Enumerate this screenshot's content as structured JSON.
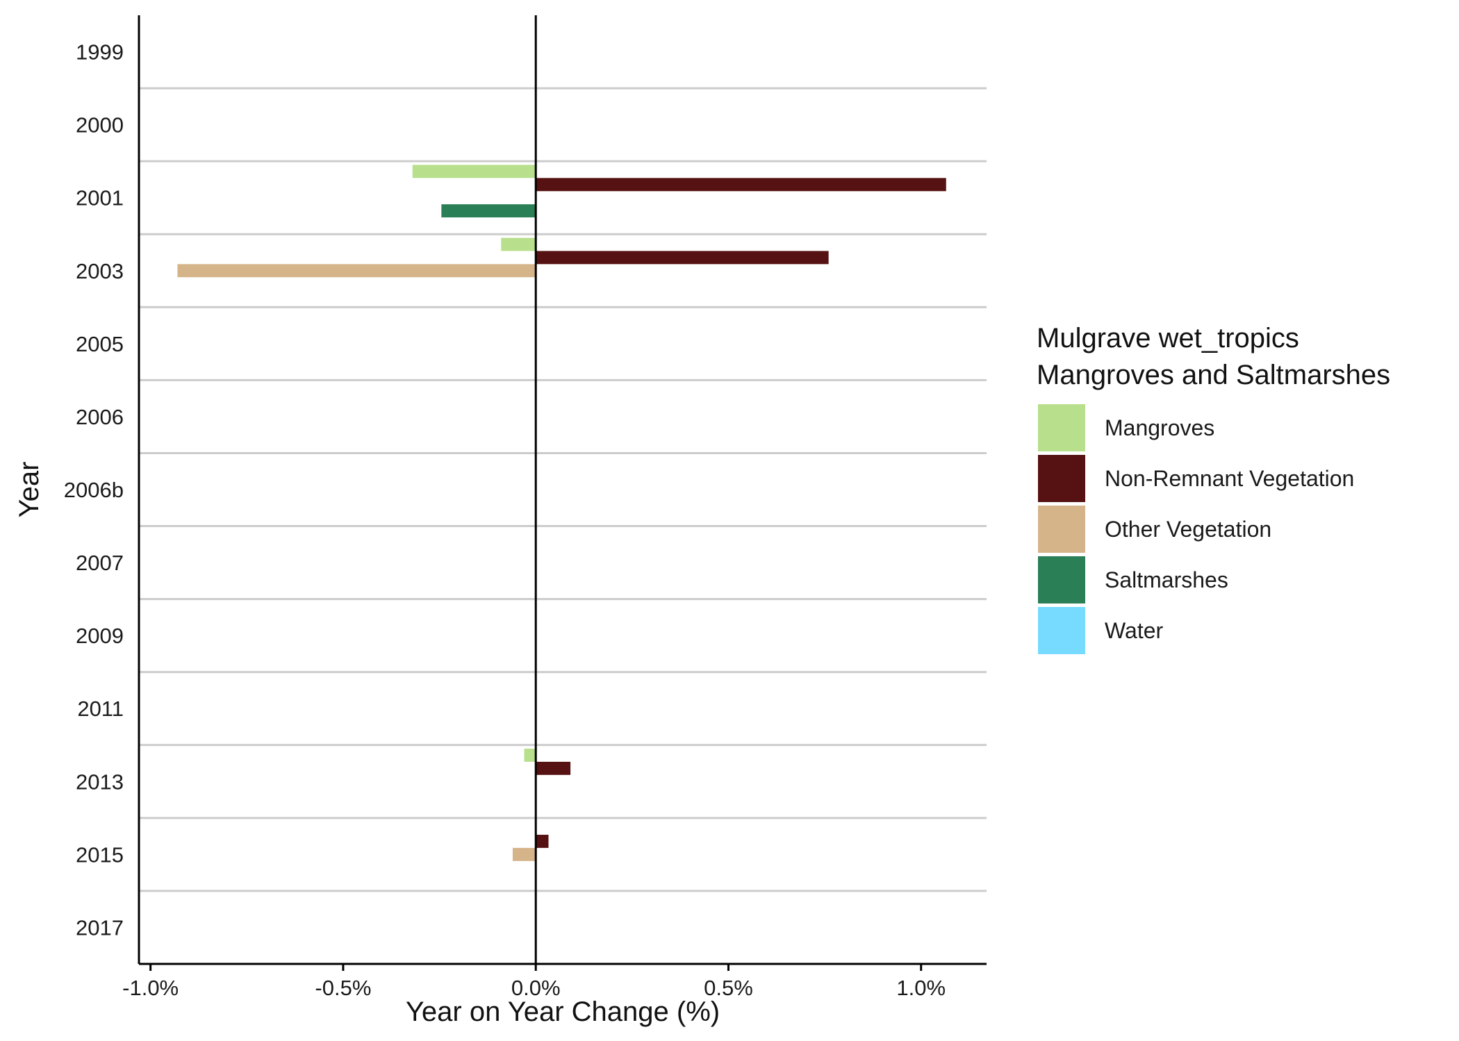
{
  "chart_data": {
    "type": "bar",
    "orientation": "horizontal",
    "xlabel": "Year on Year Change (%)",
    "ylabel": "Year",
    "categories": [
      "1999",
      "2000",
      "2001",
      "2003",
      "2005",
      "2006",
      "2006b",
      "2007",
      "2009",
      "2011",
      "2013",
      "2015",
      "2017"
    ],
    "x_ticks": [
      -1.0,
      -0.5,
      0.0,
      0.5,
      1.0
    ],
    "x_tick_labels": [
      "-1.0%",
      "-0.5%",
      "0.0%",
      "0.5%",
      "1.0%"
    ],
    "xlim": [
      -1.03,
      1.17
    ],
    "legend": {
      "title": [
        "Mulgrave wet_tropics",
        "Mangroves and Saltmarshes"
      ],
      "position": "right",
      "entries": [
        "Mangroves",
        "Non-Remnant Vegetation",
        "Other Vegetation",
        "Saltmarshes",
        "Water"
      ]
    },
    "series": [
      {
        "name": "Mangroves",
        "color": "#b8df8b",
        "values": [
          0,
          0,
          -0.32,
          -0.09,
          0,
          0,
          0,
          0,
          0,
          0,
          -0.03,
          0,
          0
        ]
      },
      {
        "name": "Non-Remnant Vegetation",
        "color": "#561212",
        "values": [
          0,
          0,
          1.065,
          0.76,
          0,
          0,
          0,
          0,
          0,
          0,
          0.09,
          0.033,
          0
        ]
      },
      {
        "name": "Other Vegetation",
        "color": "#d5b48a",
        "values": [
          0,
          0,
          0,
          -0.93,
          0,
          0,
          0,
          0,
          0,
          0,
          0,
          -0.06,
          0
        ]
      },
      {
        "name": "Saltmarshes",
        "color": "#2a7f57",
        "values": [
          0,
          0,
          -0.245,
          0,
          0,
          0,
          0,
          0,
          0,
          0,
          0,
          0,
          0
        ]
      },
      {
        "name": "Water",
        "color": "#76dbff",
        "values": [
          0,
          0,
          0,
          0,
          0,
          0,
          0,
          0,
          0,
          0,
          0,
          0,
          0
        ]
      }
    ],
    "grid": "horizontal separators between years",
    "zero_line": true
  }
}
